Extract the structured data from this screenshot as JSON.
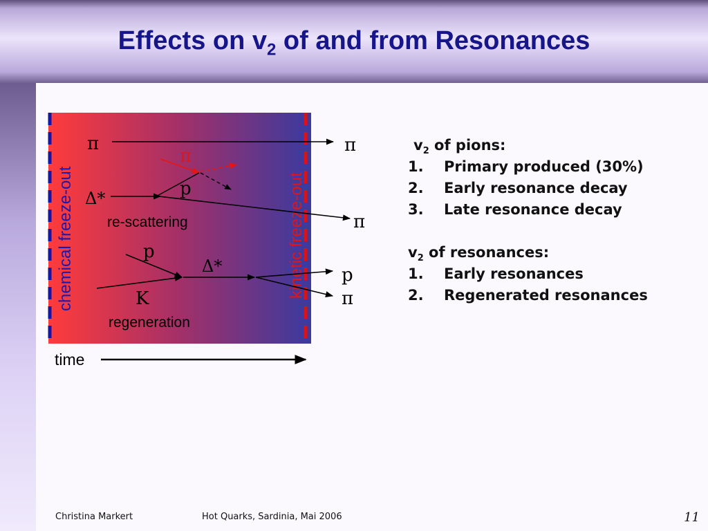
{
  "slide": {
    "title_pre": "Effects on v",
    "title_sub": "2",
    "title_post": " of and from Resonances"
  },
  "diagram": {
    "left_boundary_label": "chemical freeze-out",
    "right_boundary_label": "kinetic freeze-out",
    "gradient_colors": [
      "#ff3b3b",
      "#3a3aa0"
    ],
    "boundary_color": "#dd1111",
    "axis_label": "time",
    "particles": {
      "pi_top_in": "π",
      "pi_top_out": "π",
      "pi_red": "π",
      "delta_star_in": "Δ*",
      "p_scatter": "p",
      "pi_scatter_out": "π",
      "p_in": "p",
      "k_in": "K",
      "delta_star_mid": "Δ*",
      "p_out": "p",
      "pi_out": "π"
    },
    "rescattering_label": "re-scattering",
    "regeneration_label": "regeneration"
  },
  "pions": {
    "heading_pre": "v",
    "heading_sub": "2",
    "heading_post": " of pions:",
    "items": [
      {
        "num": "1.",
        "text": "Primary produced (30%)"
      },
      {
        "num": "2.",
        "text": "Early resonance decay"
      },
      {
        "num": "3.",
        "text": "Late resonance decay"
      }
    ]
  },
  "resonances": {
    "heading_pre": "v",
    "heading_sub": "2",
    "heading_post": " of resonances:",
    "items": [
      {
        "num": "1.",
        "text": "Early resonances"
      },
      {
        "num": "2.",
        "text": "Regenerated resonances"
      }
    ]
  },
  "footer": {
    "author": "Christina Markert",
    "event": "Hot Quarks, Sardinia, Mai 2006",
    "page": "11"
  }
}
